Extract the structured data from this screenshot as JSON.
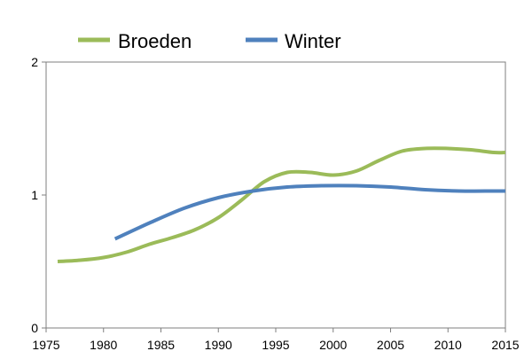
{
  "chart_data": {
    "type": "line",
    "title": "",
    "xlabel": "",
    "ylabel": "",
    "xlim": [
      1975,
      2015
    ],
    "ylim": [
      0,
      2
    ],
    "x_ticks": [
      "1975",
      "1980",
      "1985",
      "1990",
      "1995",
      "2000",
      "2005",
      "2010",
      "2015"
    ],
    "y_ticks": [
      "0",
      "1",
      "2"
    ],
    "grid": false,
    "legend_position": "top",
    "series": [
      {
        "name": "Broeden",
        "color": "#9BBB59",
        "points": [
          [
            1976,
            0.5
          ],
          [
            1978,
            0.51
          ],
          [
            1980,
            0.53
          ],
          [
            1982,
            0.57
          ],
          [
            1984,
            0.63
          ],
          [
            1986,
            0.68
          ],
          [
            1988,
            0.74
          ],
          [
            1990,
            0.83
          ],
          [
            1992,
            0.96
          ],
          [
            1994,
            1.1
          ],
          [
            1996,
            1.17
          ],
          [
            1998,
            1.17
          ],
          [
            2000,
            1.15
          ],
          [
            2002,
            1.18
          ],
          [
            2004,
            1.26
          ],
          [
            2006,
            1.33
          ],
          [
            2008,
            1.35
          ],
          [
            2010,
            1.35
          ],
          [
            2012,
            1.34
          ],
          [
            2014,
            1.32
          ],
          [
            2015,
            1.32
          ]
        ]
      },
      {
        "name": "Winter",
        "color": "#4F81BD",
        "points": [
          [
            1981,
            0.67
          ],
          [
            1984,
            0.79
          ],
          [
            1987,
            0.9
          ],
          [
            1990,
            0.98
          ],
          [
            1993,
            1.03
          ],
          [
            1996,
            1.06
          ],
          [
            1999,
            1.07
          ],
          [
            2002,
            1.07
          ],
          [
            2005,
            1.06
          ],
          [
            2008,
            1.04
          ],
          [
            2011,
            1.03
          ],
          [
            2014,
            1.03
          ],
          [
            2015,
            1.03
          ]
        ]
      }
    ]
  }
}
